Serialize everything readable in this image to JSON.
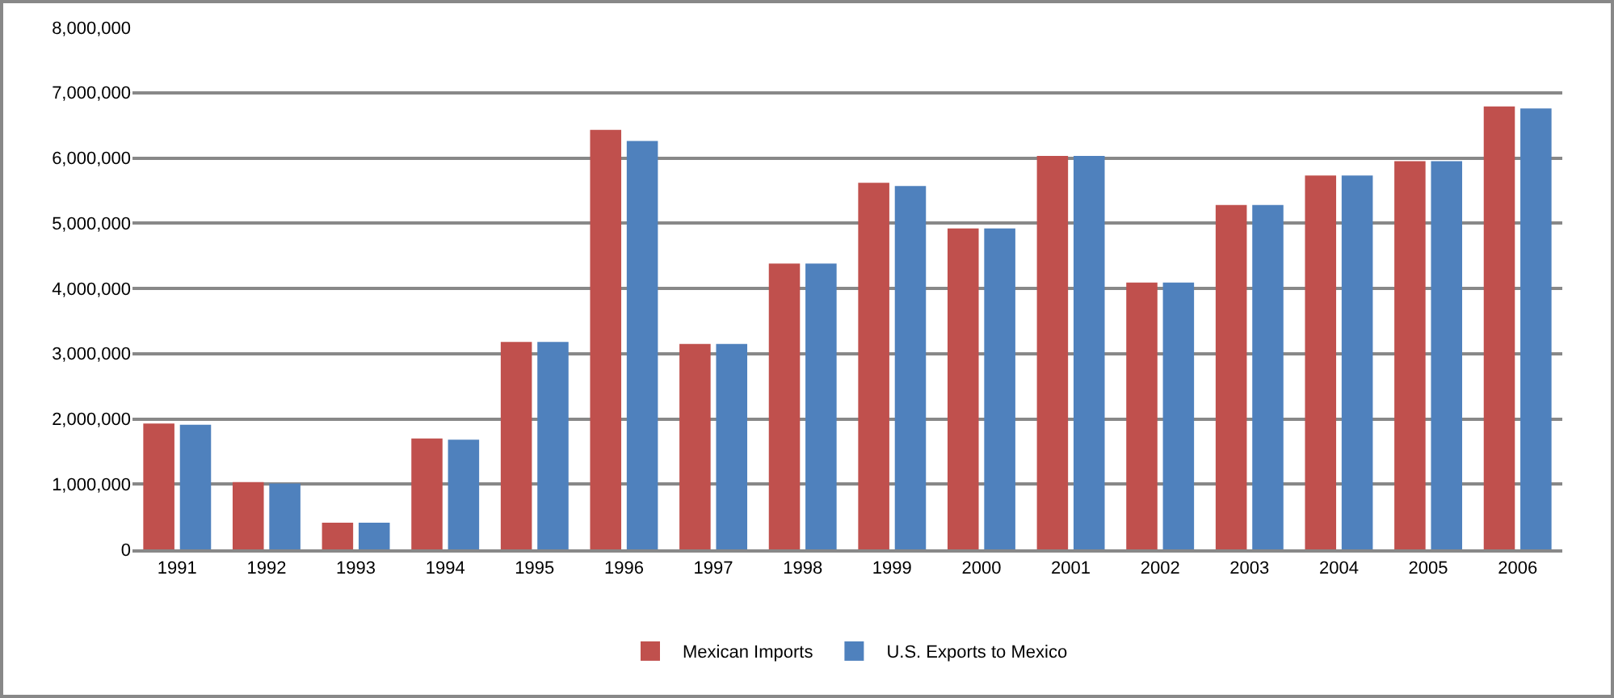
{
  "chart_data": {
    "type": "bar",
    "categories": [
      "1991",
      "1992",
      "1993",
      "1994",
      "1995",
      "1996",
      "1997",
      "1998",
      "1999",
      "2000",
      "2001",
      "2002",
      "2003",
      "2004",
      "2005",
      "2006"
    ],
    "series": [
      {
        "name": "Mexican Imports",
        "color": "#c0504d",
        "values": [
          1930000,
          1030000,
          410000,
          1700000,
          3180000,
          6430000,
          3150000,
          4380000,
          5620000,
          4920000,
          6030000,
          4090000,
          5280000,
          5730000,
          5950000,
          6790000
        ]
      },
      {
        "name": "U.S. Exports to Mexico",
        "color": "#4f81bd",
        "values": [
          1910000,
          1010000,
          410000,
          1680000,
          3180000,
          6260000,
          3150000,
          4380000,
          5570000,
          4920000,
          6030000,
          4090000,
          5280000,
          5730000,
          5950000,
          6760000
        ]
      }
    ],
    "ylim": [
      0,
      8000000
    ],
    "yticks": [
      {
        "value": 0,
        "label": "0"
      },
      {
        "value": 1000000,
        "label": "1,000,000"
      },
      {
        "value": 2000000,
        "label": "2,000,000"
      },
      {
        "value": 3000000,
        "label": "3,000,000"
      },
      {
        "value": 4000000,
        "label": "4,000,000"
      },
      {
        "value": 5000000,
        "label": "5,000,000"
      },
      {
        "value": 6000000,
        "label": "6,000,000"
      },
      {
        "value": 7000000,
        "label": "7,000,000"
      },
      {
        "value": 8000000,
        "label": "8,000,000"
      }
    ],
    "grid": "y",
    "legend": "bottom"
  }
}
